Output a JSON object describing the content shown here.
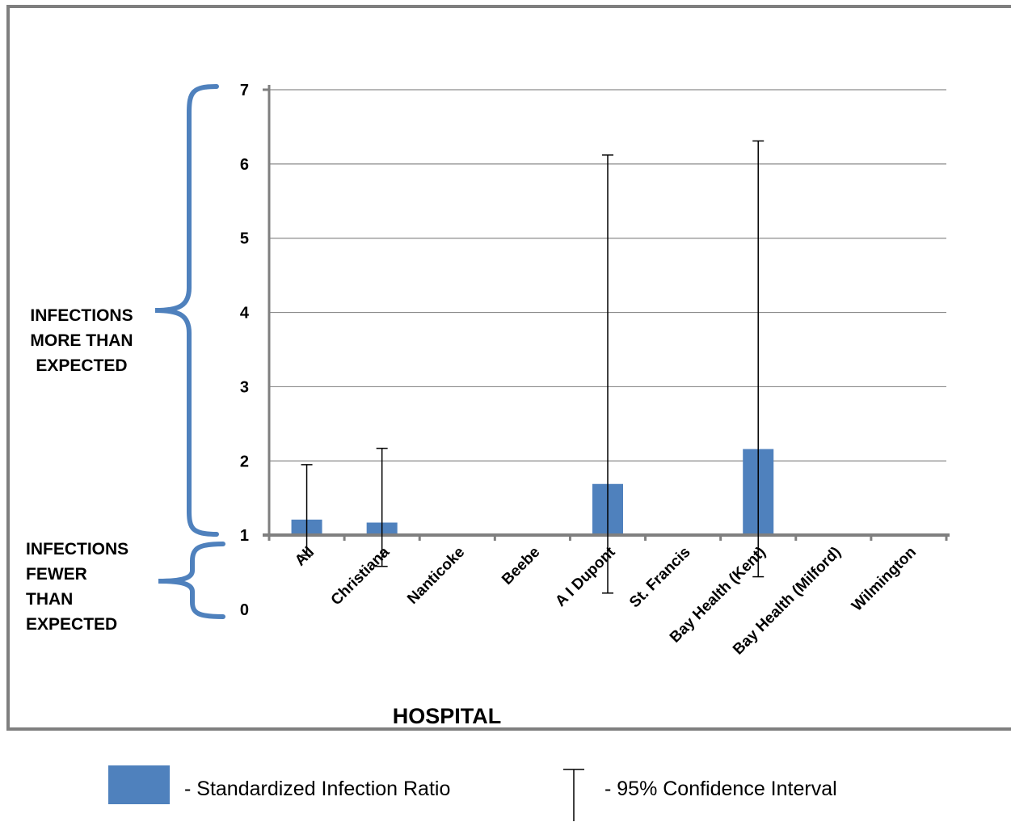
{
  "chart_data": {
    "type": "bar",
    "title": "",
    "xlabel": "HOSPITAL",
    "ylabel": "",
    "ylim": [
      0,
      7
    ],
    "yticks": [
      "0",
      "1",
      "2",
      "3",
      "4",
      "5",
      "6",
      "7"
    ],
    "grid": true,
    "baseline": 1,
    "categories": [
      "All",
      "Christiana",
      "Nanticoke",
      "Beebe",
      "A I Dupont",
      "St. Francis",
      "Bay Health (Kent)",
      "Bay Health (Milford)",
      "Wilmington"
    ],
    "series": [
      {
        "name": "Standardized Infection Ratio",
        "values": [
          1.21,
          1.17,
          null,
          null,
          1.69,
          null,
          2.16,
          null,
          null
        ],
        "ci_low": [
          0.73,
          0.58,
          null,
          null,
          0.22,
          null,
          0.44,
          null,
          null
        ],
        "ci_high": [
          1.95,
          2.17,
          null,
          null,
          6.12,
          null,
          6.31,
          null,
          null
        ]
      }
    ],
    "annotations": {
      "above": [
        "INFECTIONS",
        "MORE THAN",
        "EXPECTED"
      ],
      "below": [
        "INFECTIONS",
        "FEWER",
        "THAN",
        "EXPECTED"
      ]
    },
    "colors": {
      "bar": "#4f81bd",
      "bracket": "#4f81bd",
      "grid": "#8c8c8c",
      "frame": "#7f7f7f"
    }
  },
  "legend": {
    "sir_label": "- Standardized Infection Ratio",
    "ci_label": "- 95% Confidence Interval"
  }
}
